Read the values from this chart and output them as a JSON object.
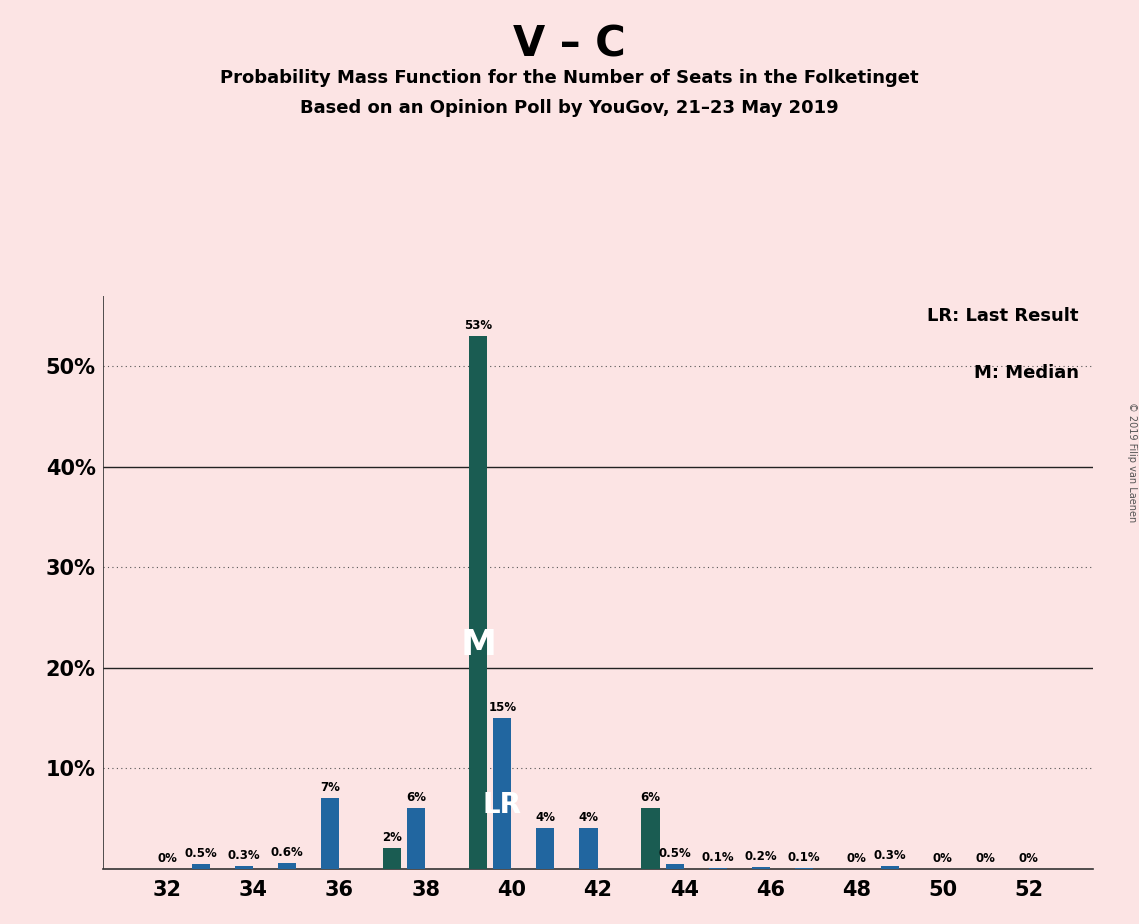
{
  "title": "V – C",
  "subtitle1": "Probability Mass Function for the Number of Seats in the Folketinget",
  "subtitle2": "Based on an Opinion Poll by YouGov, 21–23 May 2019",
  "background_color": "#fce4e4",
  "bar_color_blue": "#2166a0",
  "bar_color_teal": "#1a5c52",
  "seats": [
    32,
    33,
    34,
    35,
    36,
    37,
    38,
    39,
    40,
    41,
    42,
    43,
    44,
    45,
    46,
    47,
    48,
    49,
    50,
    51,
    52
  ],
  "blue_pmf": [
    0.0,
    0.5,
    0.3,
    0.6,
    7.0,
    0.0,
    6.0,
    0.0,
    15.0,
    4.0,
    4.0,
    0.0,
    0.5,
    0.1,
    0.2,
    0.1,
    0.0,
    0.3,
    0.0,
    0.0,
    0.0
  ],
  "teal_pmf": [
    0.0,
    0.0,
    0.0,
    0.0,
    0.0,
    2.0,
    0.0,
    53.0,
    0.0,
    0.0,
    0.0,
    6.0,
    0.0,
    0.0,
    0.0,
    0.0,
    0.0,
    0.0,
    0.0,
    0.0,
    0.0
  ],
  "all_labels": [
    "0%",
    "0.5%",
    "0.3%",
    "0.6%",
    "7%",
    "2%",
    "6%",
    "53%",
    "15%",
    "4%",
    "4%",
    "6%",
    "0.5%",
    "0.1%",
    "0.2%",
    "0.1%",
    "0%",
    "0.3%",
    "0%",
    "0%",
    "0%"
  ],
  "median_seat": 39,
  "lr_seat": 40,
  "xlim": [
    30.5,
    53.5
  ],
  "ylim": [
    0,
    57
  ],
  "ytick_vals": [
    0,
    10,
    20,
    30,
    40,
    50
  ],
  "ytick_labels": [
    "",
    "10%",
    "20%",
    "30%",
    "40%",
    "50%"
  ],
  "solid_yticks": [
    20,
    40
  ],
  "dotted_yticks": [
    10,
    30,
    50
  ],
  "xtick_positions": [
    32,
    34,
    36,
    38,
    40,
    42,
    44,
    46,
    48,
    50,
    52
  ],
  "copyright": "© 2019 Filip van Laenen",
  "legend_lr": "LR: Last Result",
  "legend_m": "M: Median"
}
